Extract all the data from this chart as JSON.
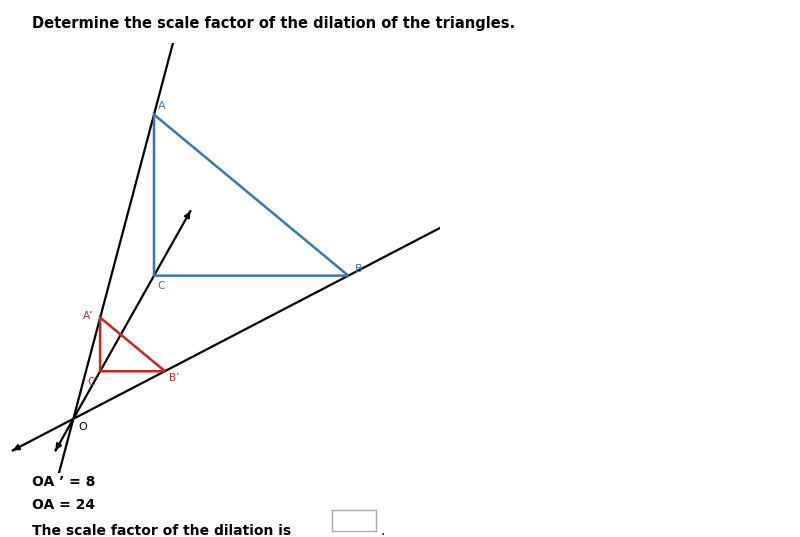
{
  "title": "Determine the scale factor of the dilation of the triangles.",
  "title_fontsize": 10.5,
  "title_fontweight": "bold",
  "background_color": "#ffffff",
  "O": [
    0.0,
    0.0
  ],
  "A": [
    2.2,
    8.5
  ],
  "B": [
    7.5,
    4.0
  ],
  "C": [
    2.2,
    4.0
  ],
  "A_prime": [
    0.73,
    2.83
  ],
  "B_prime": [
    2.5,
    1.33
  ],
  "C_prime": [
    0.73,
    1.33
  ],
  "blue_color": "#3777b0",
  "red_color": "#cc2222",
  "black_color": "#000000",
  "label_A": "A",
  "label_B": "B",
  "label_C": "C",
  "label_Ap": "A’",
  "label_Bp": "B’",
  "label_Cp": "C’",
  "label_O": "O",
  "text_OAp": "OA ’ = 8",
  "text_OA": "OA = 24",
  "text_scale": "The scale factor of the dilation is",
  "xlim": [
    -2.0,
    10.0
  ],
  "ylim": [
    -1.5,
    10.5
  ],
  "fig_width": 8.0,
  "fig_height": 5.37,
  "dpi": 100
}
